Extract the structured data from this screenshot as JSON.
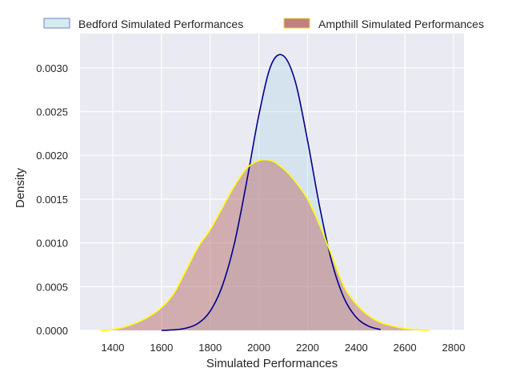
{
  "chart_data": {
    "type": "area",
    "title": "",
    "xlabel": "Simulated Performances",
    "ylabel": "Density",
    "xlim": [
      1260,
      2840
    ],
    "ylim": [
      0,
      0.0033
    ],
    "grid": true,
    "legend_placement": "top, above plot",
    "xticks": [
      1400,
      1600,
      1800,
      2000,
      2200,
      2400,
      2600,
      2800
    ],
    "xtick_labels": [
      "1400",
      "1600",
      "1800",
      "2000",
      "2200",
      "2400",
      "2600",
      "2800"
    ],
    "yticks": [
      0,
      0.0005,
      0.001,
      0.0015,
      0.002,
      0.0025,
      0.003
    ],
    "ytick_labels": [
      "0.0000",
      "0.0005",
      "0.0010",
      "0.0015",
      "0.0020",
      "0.0025",
      "0.0030"
    ],
    "series": [
      {
        "name": "Bedford Simulated Performances",
        "fill": "#add8e6",
        "line": "#00008b",
        "x": [
          1600,
          1650,
          1700,
          1750,
          1800,
          1850,
          1900,
          1950,
          2000,
          2050,
          2100,
          2150,
          2200,
          2250,
          2300,
          2350,
          2400,
          2450,
          2500
        ],
        "values": [
          0.0,
          6e-06,
          2.5e-05,
          8e-05,
          0.00022,
          0.00051,
          0.001,
          0.0017,
          0.00246,
          0.00303,
          0.00314,
          0.00284,
          0.00217,
          0.00141,
          0.00078,
          0.00037,
          0.00015,
          5e-05,
          1e-05
        ]
      },
      {
        "name": "Ampthill Simulated Performances",
        "fill": "#bc7a7a",
        "line": "#ffff00",
        "x": [
          1350,
          1400,
          1450,
          1500,
          1550,
          1600,
          1650,
          1700,
          1750,
          1800,
          1850,
          1900,
          1950,
          2000,
          2050,
          2100,
          2150,
          2200,
          2250,
          2300,
          2350,
          2400,
          2450,
          2500,
          2550,
          2600,
          2650,
          2700
        ],
        "values": [
          0.0,
          1e-05,
          4e-05,
          9e-05,
          0.00016,
          0.00026,
          0.00042,
          0.00068,
          0.00095,
          0.00115,
          0.0014,
          0.00165,
          0.00185,
          0.00194,
          0.00194,
          0.00185,
          0.0017,
          0.0015,
          0.0012,
          0.00085,
          0.0005,
          0.0003,
          0.00017,
          9e-05,
          5e-05,
          2e-05,
          1e-05,
          0.0
        ]
      }
    ]
  }
}
